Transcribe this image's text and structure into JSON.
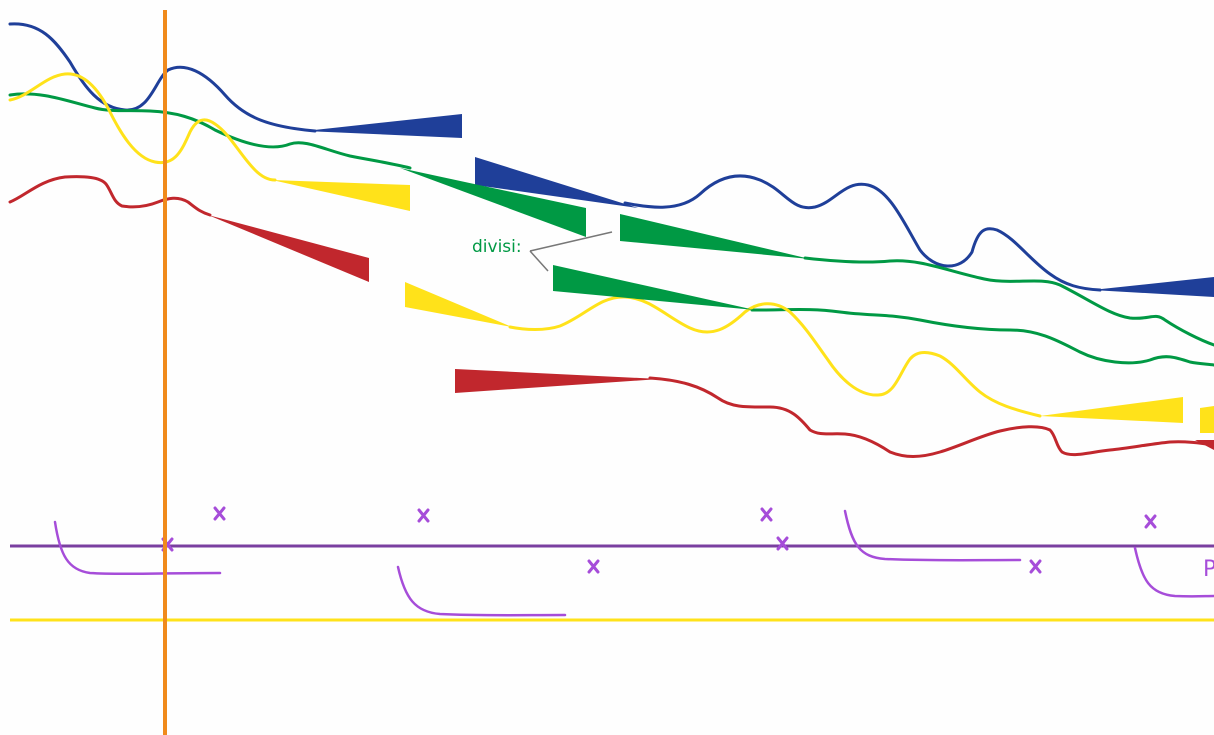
{
  "score": {
    "divisi_label": "divisi:",
    "edge_label": "P",
    "marker_glyph": "x",
    "colors": {
      "background": "#fefefe",
      "blue": "#1f3f99",
      "green": "#009944",
      "yellow": "#ffe21a",
      "red": "#c1272d",
      "purple": "#a64dd9",
      "staff_purple": "#7a3fa0",
      "orange": "#f08a1c",
      "leader_gray": "#777777"
    },
    "icons": [
      "cursor-line",
      "staff-line",
      "reference-line",
      "curve",
      "wedge",
      "cross-marker",
      "glide-stroke"
    ]
  }
}
